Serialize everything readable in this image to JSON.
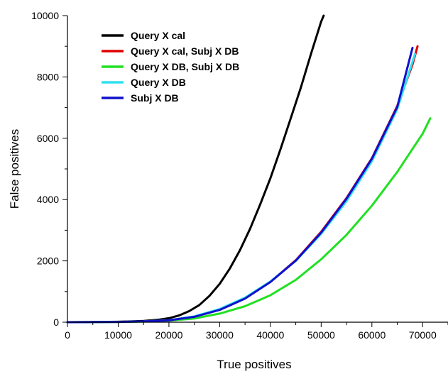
{
  "chart_data": {
    "type": "line",
    "title": "",
    "xlabel": "True positives",
    "ylabel": "False positives",
    "xlim": [
      0,
      75000
    ],
    "ylim": [
      0,
      10000
    ],
    "x_ticks": [
      0,
      10000,
      20000,
      30000,
      40000,
      50000,
      60000,
      70000
    ],
    "x_tick_labels": [
      "0",
      "10000",
      "20000",
      "30000",
      "40000",
      "50000",
      "60000",
      "70000"
    ],
    "y_ticks": [
      0,
      2000,
      4000,
      6000,
      8000,
      10000
    ],
    "y_tick_labels": [
      "0",
      "2000",
      "4000",
      "6000",
      "8000",
      "10000"
    ],
    "grid": false,
    "legend_position": "top-left",
    "series": [
      {
        "name": "Query X cal",
        "color": "#000000",
        "x": [
          0,
          5000,
          10000,
          15000,
          18000,
          20000,
          22000,
          24000,
          26000,
          28000,
          30000,
          32000,
          34000,
          36000,
          38000,
          40000,
          42000,
          44000,
          46000,
          48000,
          50000,
          50500
        ],
        "y": [
          0,
          5,
          15,
          40,
          80,
          130,
          220,
          360,
          560,
          860,
          1250,
          1750,
          2350,
          3050,
          3850,
          4700,
          5650,
          6650,
          7650,
          8750,
          9800,
          10000
        ]
      },
      {
        "name": "Query X cal, Subj X DB",
        "color": "#e00000",
        "x": [
          0,
          5000,
          10000,
          15000,
          20000,
          25000,
          30000,
          35000,
          40000,
          45000,
          50000,
          55000,
          60000,
          65000,
          68000,
          69000
        ],
        "y": [
          0,
          5,
          10,
          25,
          60,
          180,
          410,
          780,
          1320,
          2020,
          2950,
          4050,
          5350,
          7050,
          8400,
          9000
        ]
      },
      {
        "name": "Query X DB, Subj X DB",
        "color": "#22e022",
        "x": [
          0,
          5000,
          10000,
          15000,
          20000,
          25000,
          30000,
          35000,
          40000,
          45000,
          50000,
          55000,
          60000,
          65000,
          70000,
          71500
        ],
        "y": [
          0,
          5,
          10,
          20,
          50,
          120,
          280,
          520,
          880,
          1380,
          2050,
          2850,
          3800,
          4900,
          6150,
          6650
        ]
      },
      {
        "name": "Query X DB",
        "color": "#30e0f0",
        "x": [
          0,
          5000,
          10000,
          15000,
          20000,
          25000,
          30000,
          35000,
          40000,
          45000,
          50000,
          55000,
          60000,
          65000,
          68500
        ],
        "y": [
          0,
          5,
          10,
          25,
          65,
          190,
          430,
          800,
          1330,
          2000,
          2880,
          3950,
          5250,
          6950,
          8750
        ]
      },
      {
        "name": "Subj X DB",
        "color": "#1010cc",
        "x": [
          0,
          5000,
          10000,
          15000,
          20000,
          25000,
          30000,
          35000,
          40000,
          45000,
          50000,
          55000,
          60000,
          65000,
          68000
        ],
        "y": [
          0,
          5,
          10,
          25,
          60,
          175,
          400,
          770,
          1310,
          2010,
          2920,
          4030,
          5330,
          7020,
          8950
        ]
      }
    ]
  }
}
